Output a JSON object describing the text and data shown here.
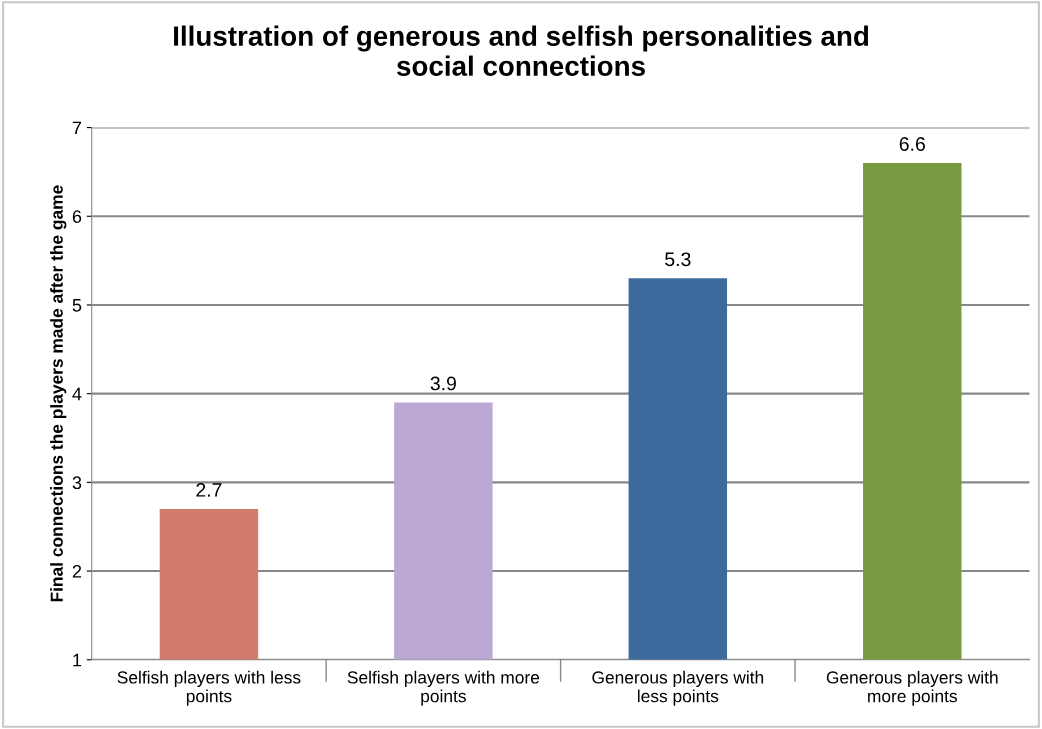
{
  "chart_data": {
    "type": "bar",
    "title": "Illustration of generous and selfish personalities and\nsocial connections",
    "ylabel": "Final connections the players made after the game",
    "categories": [
      "Selfish players with less\npoints",
      "Selfish players with more\npoints",
      "Generous players with\nless points",
      "Generous players with\nmore points"
    ],
    "values": [
      2.7,
      3.9,
      5.3,
      6.6
    ],
    "colors": [
      "#d07b6b",
      "#bba8d3",
      "#3e6a9e",
      "#7a9a42"
    ],
    "ylim": [
      1,
      7
    ],
    "yticks": [
      1,
      2,
      3,
      4,
      5,
      6,
      7
    ],
    "grid": "y",
    "data_labels": true
  }
}
